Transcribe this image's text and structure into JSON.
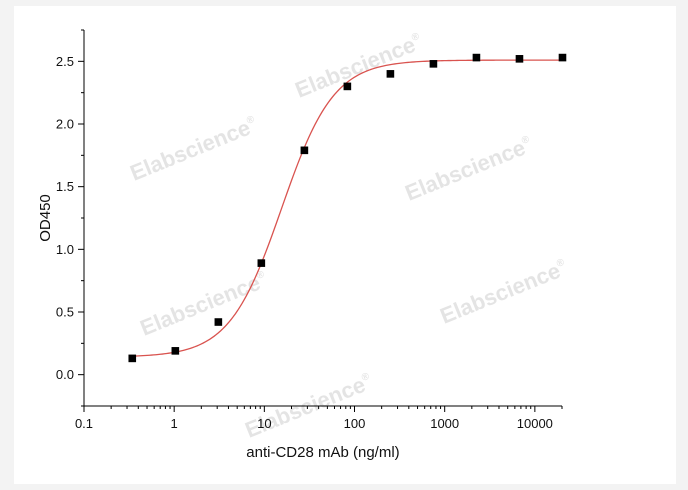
{
  "chart_data": {
    "type": "scatter",
    "title": "",
    "xlabel": "anti-CD28 mAb (ng/ml)",
    "ylabel": "OD450",
    "x_scale": "log",
    "xlim": [
      0.1,
      20000
    ],
    "ylim": [
      -0.25,
      2.75
    ],
    "x_ticks": [
      "0.1",
      "1",
      "10",
      "100",
      "1000",
      "10000"
    ],
    "y_ticks": [
      "0.0",
      "0.5",
      "1.0",
      "1.5",
      "2.0",
      "2.5"
    ],
    "series": [
      {
        "marker": "square",
        "color": "#000000",
        "x": [
          0.343,
          1.03,
          3.09,
          9.26,
          27.8,
          83.3,
          250,
          750,
          2250,
          6750,
          20250
        ],
        "y": [
          0.13,
          0.19,
          0.42,
          0.89,
          1.79,
          2.3,
          2.4,
          2.48,
          2.53,
          2.52,
          2.53
        ]
      }
    ],
    "fit_curve": {
      "type": "four-parameter-logistic",
      "color": "#d9534f",
      "bottom": 0.14,
      "top": 2.51,
      "ec50": 15.5,
      "hill": 1.5
    },
    "grid": false,
    "legend": "none"
  },
  "watermark": {
    "text": "Elabscience",
    "symbol": "®"
  }
}
